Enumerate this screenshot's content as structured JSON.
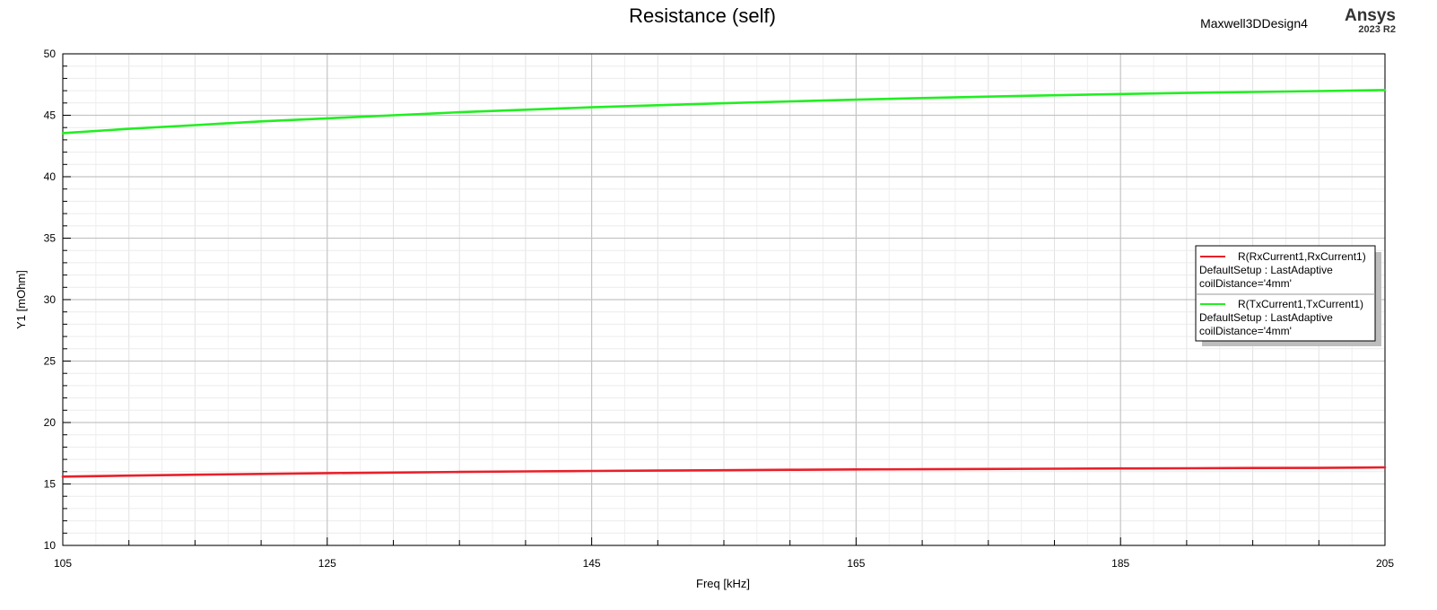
{
  "header": {
    "design_name": "Maxwell3DDesign4",
    "brand": "Ansys",
    "version": "2023 R2"
  },
  "chart_data": {
    "type": "line",
    "title": "Resistance (self)",
    "xlabel": "Freq [kHz]",
    "ylabel": "Y1 [mOhm]",
    "xlim": [
      105,
      205
    ],
    "ylim": [
      10,
      50
    ],
    "x_ticks": [
      105,
      125,
      145,
      165,
      185,
      205
    ],
    "y_ticks": [
      10,
      15,
      20,
      25,
      30,
      35,
      40,
      45,
      50
    ],
    "grid": true,
    "legend_position": "right",
    "x": [
      105,
      110,
      115,
      120,
      125,
      130,
      135,
      140,
      145,
      150,
      155,
      160,
      165,
      170,
      175,
      180,
      185,
      190,
      195,
      200,
      205
    ],
    "series": [
      {
        "name": "R(RxCurrent1,RxCurrent1)",
        "setup": "DefaultSetup : LastAdaptive",
        "variation": "coilDistance='4mm'",
        "color": "#e8202a",
        "values": [
          15.6,
          15.68,
          15.75,
          15.82,
          15.88,
          15.93,
          15.98,
          16.02,
          16.06,
          16.09,
          16.12,
          16.15,
          16.18,
          16.2,
          16.22,
          16.24,
          16.26,
          16.28,
          16.3,
          16.31,
          16.35
        ]
      },
      {
        "name": "R(TxCurrent1,TxCurrent1)",
        "setup": "DefaultSetup : LastAdaptive",
        "variation": "coilDistance='4mm'",
        "color": "#22ee22",
        "values": [
          43.55,
          43.9,
          44.2,
          44.5,
          44.75,
          45.0,
          45.25,
          45.45,
          45.65,
          45.82,
          45.98,
          46.13,
          46.27,
          46.4,
          46.52,
          46.63,
          46.73,
          46.82,
          46.9,
          46.97,
          47.05
        ]
      }
    ]
  }
}
